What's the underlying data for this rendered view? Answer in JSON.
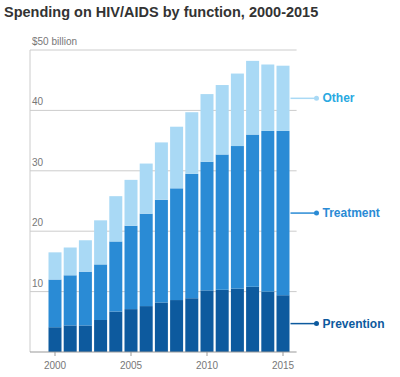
{
  "chart_data": {
    "type": "bar",
    "title": "Spending on HIV/AIDS by function, 2000-2015",
    "categories": [
      "2000",
      null,
      null,
      null,
      null,
      "2005",
      null,
      null,
      null,
      null,
      "2010",
      null,
      null,
      null,
      null,
      "2015"
    ],
    "series": [
      {
        "name": "Prevention",
        "color": "#0d5a9e",
        "values": [
          4.1,
          4.4,
          4.4,
          5.3,
          6.7,
          7.1,
          7.6,
          8.2,
          8.6,
          8.9,
          10.2,
          10.3,
          10.5,
          10.8,
          10.0,
          9.4
        ]
      },
      {
        "name": "Treatment",
        "color": "#2a8bd5",
        "values": [
          7.9,
          8.3,
          8.9,
          9.2,
          11.6,
          13.8,
          15.3,
          17.0,
          18.5,
          20.6,
          21.3,
          22.4,
          23.6,
          25.2,
          26.6,
          27.2
        ]
      },
      {
        "name": "Other",
        "color": "#a9d9f5",
        "values": [
          4.5,
          4.6,
          5.2,
          7.3,
          7.5,
          7.6,
          8.3,
          9.5,
          10.2,
          10.2,
          11.2,
          11.5,
          12.0,
          12.2,
          11.0,
          10.8
        ]
      }
    ],
    "ylim": [
      0,
      50
    ],
    "yticks": [
      10,
      20,
      30,
      40,
      {
        "value": 50,
        "label": "$50 billion"
      }
    ],
    "stacked": true,
    "grid": true,
    "legend": "right"
  }
}
